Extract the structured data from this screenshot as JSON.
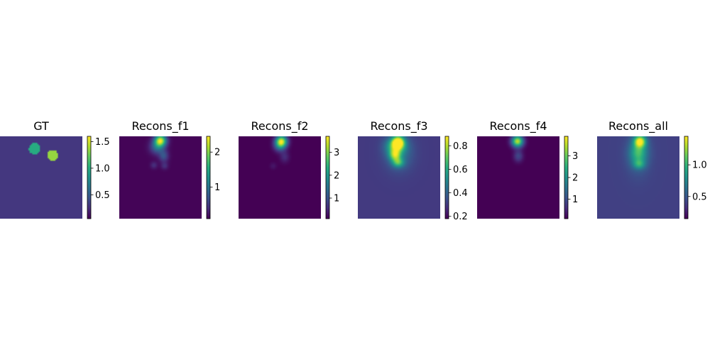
{
  "chart_data": [
    {
      "type": "heatmap",
      "title": "GT",
      "colorbar": {
        "min": 0.05,
        "max": 1.6,
        "ticks": [
          0.5,
          1.0,
          1.5
        ],
        "tick_labels": [
          "0.5",
          "1.0",
          "1.5"
        ]
      },
      "description_values": {
        "background": 0.3,
        "blobs": [
          {
            "cx": 0.42,
            "cy": 0.15,
            "r": 0.07,
            "value": 1.0
          },
          {
            "cx": 0.64,
            "cy": 0.23,
            "r": 0.065,
            "value": 1.35
          }
        ]
      }
    },
    {
      "type": "heatmap",
      "title": "Recons_f1",
      "colorbar": {
        "min": 0.1,
        "max": 2.45,
        "ticks": [
          1,
          2
        ],
        "tick_labels": [
          "1",
          "2"
        ]
      },
      "description_values": {
        "background": 0.12,
        "blobs": [
          {
            "cx": 0.5,
            "cy": 0.05,
            "sx": 0.05,
            "sy": 0.05,
            "value": 2.45
          },
          {
            "cx": 0.46,
            "cy": 0.13,
            "sx": 0.06,
            "sy": 0.06,
            "value": 1.0
          },
          {
            "cx": 0.54,
            "cy": 0.24,
            "sx": 0.04,
            "sy": 0.05,
            "value": 0.75
          },
          {
            "cx": 0.42,
            "cy": 0.35,
            "sx": 0.03,
            "sy": 0.03,
            "value": 0.45
          },
          {
            "cx": 0.55,
            "cy": 0.36,
            "sx": 0.03,
            "sy": 0.03,
            "value": 0.45
          }
        ]
      }
    },
    {
      "type": "heatmap",
      "title": "Recons_f2",
      "colorbar": {
        "min": 0.1,
        "max": 3.7,
        "ticks": [
          1,
          2,
          3
        ],
        "tick_labels": [
          "1",
          "2",
          "3"
        ]
      },
      "description_values": {
        "background": 0.08,
        "blobs": [
          {
            "cx": 0.52,
            "cy": 0.06,
            "sx": 0.05,
            "sy": 0.05,
            "value": 3.7
          },
          {
            "cx": 0.5,
            "cy": 0.12,
            "sx": 0.05,
            "sy": 0.05,
            "value": 1.2
          },
          {
            "cx": 0.56,
            "cy": 0.25,
            "sx": 0.04,
            "sy": 0.05,
            "value": 0.6
          },
          {
            "cx": 0.42,
            "cy": 0.36,
            "sx": 0.03,
            "sy": 0.03,
            "value": 0.35
          }
        ]
      }
    },
    {
      "type": "heatmap",
      "title": "Recons_f3",
      "colorbar": {
        "min": 0.18,
        "max": 0.88,
        "ticks": [
          0.2,
          0.4,
          0.6,
          0.8
        ],
        "tick_labels": [
          "0.2",
          "0.4",
          "0.6",
          "0.8"
        ]
      },
      "description_values": {
        "background": 0.3,
        "blobs": [
          {
            "cx": 0.49,
            "cy": 0.07,
            "sx": 0.05,
            "sy": 0.05,
            "value": 0.88
          },
          {
            "cx": 0.46,
            "cy": 0.12,
            "sx": 0.08,
            "sy": 0.07,
            "value": 0.68
          },
          {
            "cx": 0.45,
            "cy": 0.23,
            "sx": 0.05,
            "sy": 0.05,
            "value": 0.68
          },
          {
            "cx": 0.49,
            "cy": 0.32,
            "sx": 0.05,
            "sy": 0.04,
            "value": 0.62
          },
          {
            "cx": 0.5,
            "cy": 0.2,
            "sx": 0.12,
            "sy": 0.15,
            "value": 0.45
          }
        ]
      }
    },
    {
      "type": "heatmap",
      "title": "Recons_f4",
      "colorbar": {
        "min": 0.1,
        "max": 3.9,
        "ticks": [
          1,
          2,
          3
        ],
        "tick_labels": [
          "1",
          "2",
          "3"
        ]
      },
      "description_values": {
        "background": 0.08,
        "blobs": [
          {
            "cx": 0.49,
            "cy": 0.06,
            "sx": 0.05,
            "sy": 0.05,
            "value": 3.9
          },
          {
            "cx": 0.5,
            "cy": 0.24,
            "sx": 0.04,
            "sy": 0.05,
            "value": 1.0
          }
        ]
      }
    },
    {
      "type": "heatmap",
      "title": "Recons_all",
      "colorbar": {
        "min": 0.15,
        "max": 1.45,
        "ticks": [
          0.5,
          1.0
        ],
        "tick_labels": [
          "0.5",
          "1.0"
        ]
      },
      "description_values": {
        "background": 0.4,
        "blobs": [
          {
            "cx": 0.52,
            "cy": 0.06,
            "sx": 0.05,
            "sy": 0.05,
            "value": 1.45
          },
          {
            "cx": 0.5,
            "cy": 0.2,
            "sx": 0.07,
            "sy": 0.09,
            "value": 0.95
          },
          {
            "cx": 0.51,
            "cy": 0.34,
            "sx": 0.05,
            "sy": 0.04,
            "value": 0.8
          },
          {
            "cx": 0.5,
            "cy": 0.22,
            "sx": 0.1,
            "sy": 0.18,
            "value": 0.6
          }
        ]
      }
    }
  ]
}
